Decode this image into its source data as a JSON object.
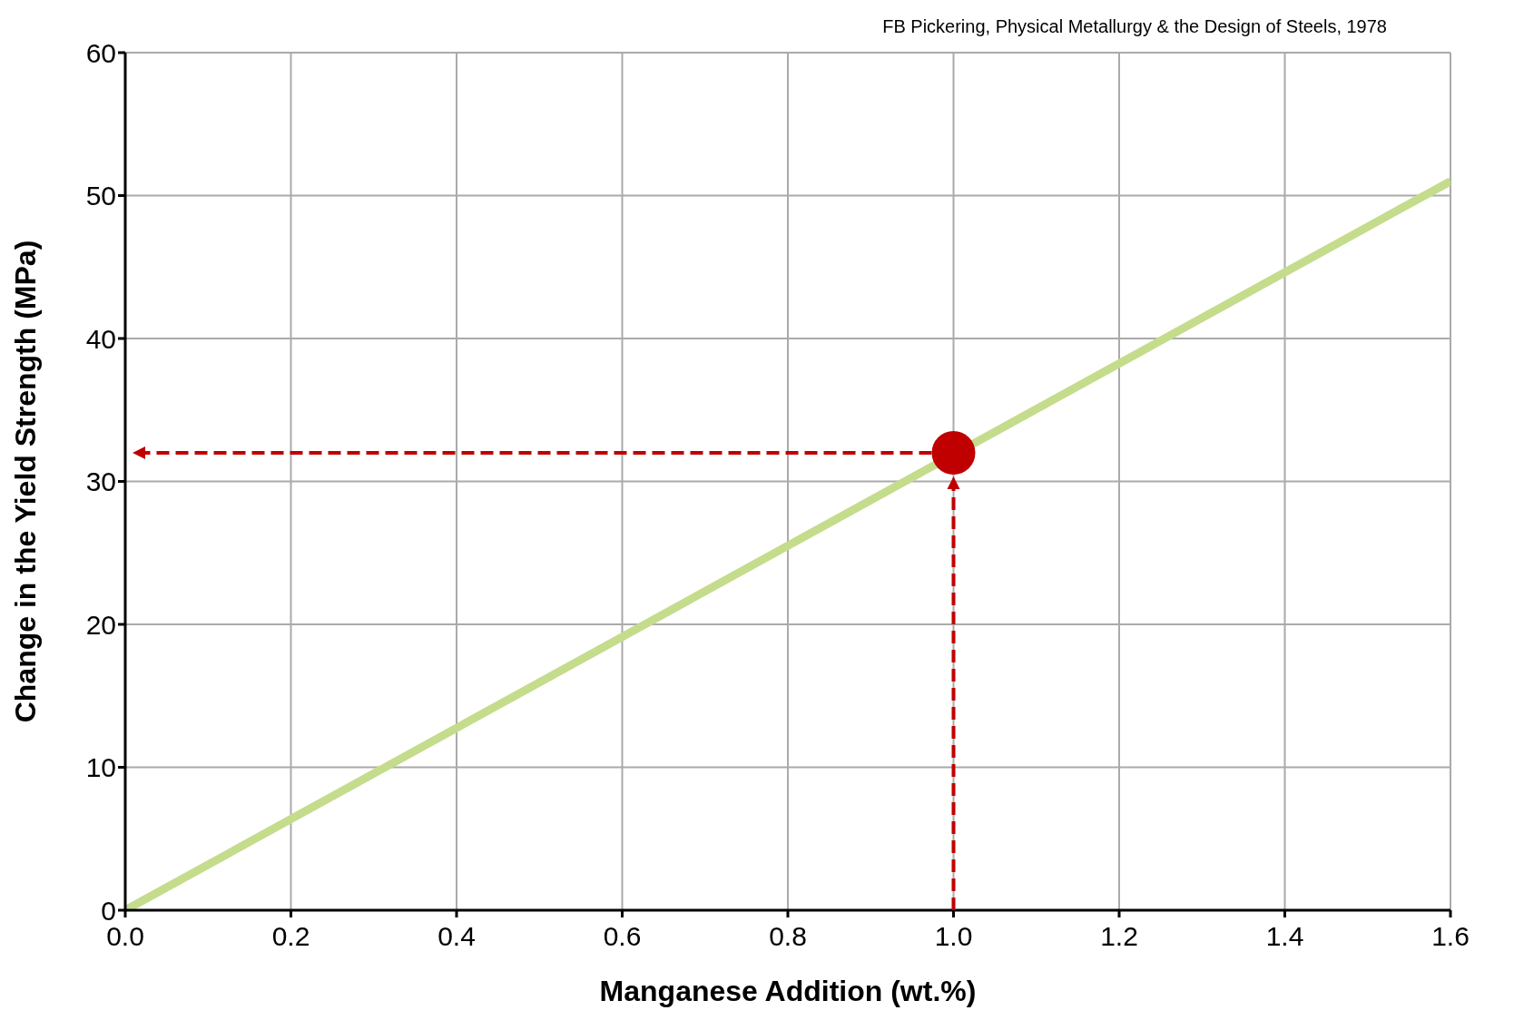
{
  "chart_data": {
    "type": "line",
    "xlabel": "Manganese Addition (wt.%)",
    "ylabel": "Change in the Yield Strength (MPa)",
    "annotations": [
      "FB Pickering, Physical Metallurgy & the Design of Steels, 1978"
    ],
    "series": [
      {
        "color": "#c5dc8c",
        "x": [
          0,
          1.6
        ],
        "values": [
          0,
          51
        ],
        "marker": "none"
      },
      {
        "type": "scatter",
        "color": "#c00000",
        "x": [
          1.0
        ],
        "values": [
          32
        ],
        "marker": "circle"
      }
    ],
    "xlim": [
      0,
      1.6
    ],
    "xticks": [
      {
        "value": 0,
        "label": "0.0"
      },
      0.2,
      0.4,
      0.6,
      0.8,
      {
        "value": 1,
        "label": "1.0"
      },
      1.2,
      1.4,
      1.6
    ],
    "ylim": [
      0,
      60
    ],
    "yticks": [
      0,
      10,
      20,
      30,
      40,
      50,
      60
    ],
    "grid": true
  }
}
